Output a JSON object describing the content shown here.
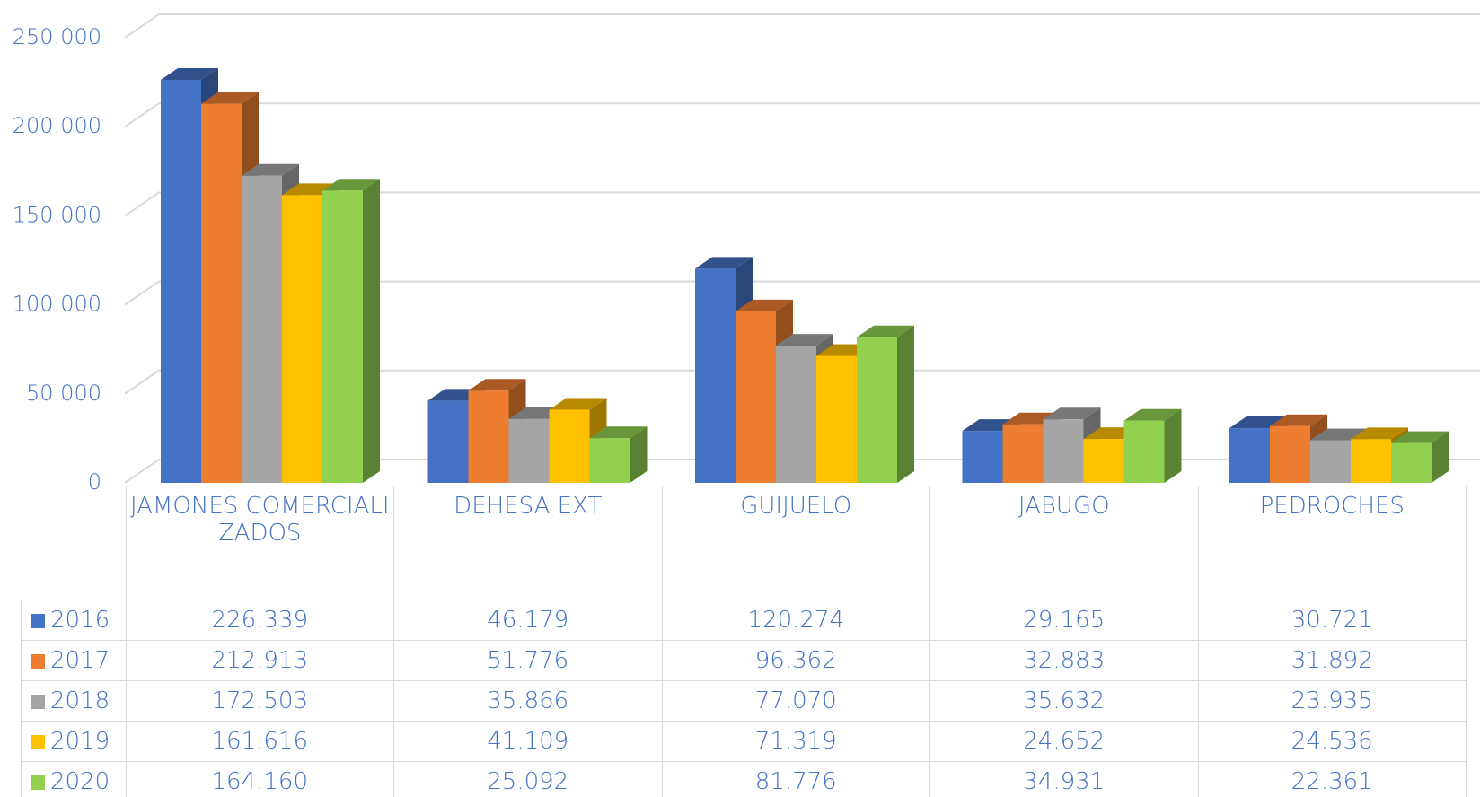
{
  "chart_data": {
    "type": "bar3d",
    "categories": [
      "JAMONES COMERCIALIZADOS",
      "DEHESA EXT",
      "GUIJUELO",
      "JABUGO",
      "PEDROCHES"
    ],
    "series": [
      {
        "name": "2016",
        "color": "#4472c4",
        "values": [
          226339,
          46179,
          120274,
          29165,
          30721
        ],
        "value_labels": [
          "226.339",
          "46.179",
          "120.274",
          "29.165",
          "30.721"
        ]
      },
      {
        "name": "2017",
        "color": "#ed7d31",
        "values": [
          212913,
          51776,
          96362,
          32883,
          31892
        ],
        "value_labels": [
          "212.913",
          "51.776",
          "96.362",
          "32.883",
          "31.892"
        ]
      },
      {
        "name": "2018",
        "color": "#a5a5a5",
        "values": [
          172503,
          35866,
          77070,
          35632,
          23935
        ],
        "value_labels": [
          "172.503",
          "35.866",
          "77.070",
          "35.632",
          "23.935"
        ]
      },
      {
        "name": "2019",
        "color": "#ffc000",
        "values": [
          161616,
          41109,
          71319,
          24652,
          24536
        ],
        "value_labels": [
          "161.616",
          "41.109",
          "71.319",
          "24.652",
          "24.536"
        ]
      },
      {
        "name": "2020",
        "color": "#92d050",
        "values": [
          164160,
          25092,
          81776,
          34931,
          22361
        ],
        "value_labels": [
          "164.160",
          "25.092",
          "81.776",
          "34.931",
          "22.361"
        ]
      }
    ],
    "ylim": [
      0,
      250000
    ],
    "yticks": [
      0,
      {
        "value": 50000,
        "label": "50.000"
      },
      {
        "value": 100000,
        "label": "100.000"
      },
      {
        "value": 150000,
        "label": "150.000"
      },
      {
        "value": 200000,
        "label": "200.000"
      },
      {
        "value": 250000,
        "label": "250.000"
      }
    ],
    "grid": true,
    "data_table": true
  }
}
